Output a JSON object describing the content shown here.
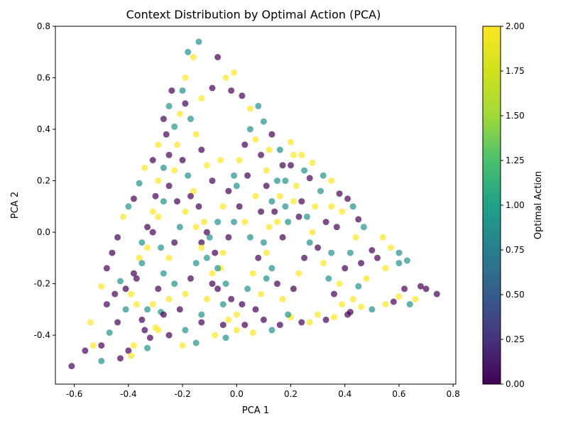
{
  "chart_data": {
    "type": "scatter",
    "title": "Context Distribution by Optimal Action (PCA)",
    "xlabel": "PCA 1",
    "ylabel": "PCA 2",
    "xlim": [
      -0.67,
      0.81
    ],
    "ylim": [
      -0.59,
      0.8
    ],
    "x_ticks": [
      -0.6,
      -0.4,
      -0.2,
      0.0,
      0.2,
      0.4,
      0.6,
      0.8
    ],
    "y_ticks": [
      -0.4,
      -0.2,
      0.0,
      0.2,
      0.4,
      0.6,
      0.8
    ],
    "grid": false,
    "colormap": "viridis",
    "point_alpha": 0.7,
    "colorbar": {
      "label": "Optimal Action",
      "range": [
        0.0,
        2.0
      ],
      "ticks": [
        0.0,
        0.25,
        0.5,
        0.75,
        1.0,
        1.25,
        1.5,
        1.75,
        2.0
      ]
    },
    "colors": {
      "action_0": "#440154",
      "action_1": "#21918c",
      "action_2": "#fde725"
    },
    "points": [
      {
        "x": -0.61,
        "y": -0.52,
        "c": 0
      },
      {
        "x": -0.56,
        "y": -0.46,
        "c": 0
      },
      {
        "x": -0.5,
        "y": -0.5,
        "c": 1
      },
      {
        "x": -0.5,
        "y": -0.44,
        "c": 0
      },
      {
        "x": -0.54,
        "y": -0.35,
        "c": 2
      },
      {
        "x": -0.53,
        "y": -0.44,
        "c": 2
      },
      {
        "x": -0.47,
        "y": -0.39,
        "c": 1
      },
      {
        "x": -0.44,
        "y": -0.35,
        "c": 0
      },
      {
        "x": -0.43,
        "y": -0.49,
        "c": 0
      },
      {
        "x": -0.4,
        "y": -0.46,
        "c": 0
      },
      {
        "x": -0.39,
        "y": -0.48,
        "c": 2
      },
      {
        "x": -0.38,
        "y": -0.44,
        "c": 2
      },
      {
        "x": -0.33,
        "y": -0.45,
        "c": 1
      },
      {
        "x": -0.32,
        "y": -0.41,
        "c": 0
      },
      {
        "x": -0.34,
        "y": -0.38,
        "c": 0
      },
      {
        "x": -0.3,
        "y": -0.37,
        "c": 2
      },
      {
        "x": -0.28,
        "y": -0.31,
        "c": 1
      },
      {
        "x": -0.25,
        "y": -0.4,
        "c": 0
      },
      {
        "x": -0.2,
        "y": -0.44,
        "c": 2
      },
      {
        "x": -0.19,
        "y": -0.38,
        "c": 1
      },
      {
        "x": -0.15,
        "y": -0.43,
        "c": 1
      },
      {
        "x": -0.13,
        "y": -0.35,
        "c": 0
      },
      {
        "x": -0.08,
        "y": -0.4,
        "c": 2
      },
      {
        "x": -0.05,
        "y": -0.36,
        "c": 0
      },
      {
        "x": -0.04,
        "y": -0.41,
        "c": 1
      },
      {
        "x": 0.0,
        "y": -0.38,
        "c": 2
      },
      {
        "x": 0.03,
        "y": -0.36,
        "c": 0
      },
      {
        "x": 0.06,
        "y": -0.39,
        "c": 2
      },
      {
        "x": 0.1,
        "y": -0.34,
        "c": 0
      },
      {
        "x": 0.13,
        "y": -0.38,
        "c": 1
      },
      {
        "x": 0.16,
        "y": -0.36,
        "c": 0
      },
      {
        "x": 0.2,
        "y": -0.33,
        "c": 2
      },
      {
        "x": 0.24,
        "y": -0.35,
        "c": 0
      },
      {
        "x": 0.27,
        "y": -0.35,
        "c": 2
      },
      {
        "x": 0.3,
        "y": -0.32,
        "c": 2
      },
      {
        "x": 0.33,
        "y": -0.34,
        "c": 0
      },
      {
        "x": 0.36,
        "y": -0.33,
        "c": 2
      },
      {
        "x": 0.42,
        "y": -0.31,
        "c": 0
      },
      {
        "x": 0.46,
        "y": -0.29,
        "c": 2
      },
      {
        "x": 0.5,
        "y": -0.3,
        "c": 1
      },
      {
        "x": 0.55,
        "y": -0.28,
        "c": 2
      },
      {
        "x": 0.58,
        "y": -0.27,
        "c": 0
      },
      {
        "x": 0.6,
        "y": -0.25,
        "c": 2
      },
      {
        "x": 0.62,
        "y": -0.22,
        "c": 0
      },
      {
        "x": 0.64,
        "y": -0.28,
        "c": 1
      },
      {
        "x": 0.66,
        "y": -0.26,
        "c": 2
      },
      {
        "x": 0.68,
        "y": -0.21,
        "c": 0
      },
      {
        "x": 0.7,
        "y": -0.22,
        "c": 0
      },
      {
        "x": 0.74,
        "y": -0.24,
        "c": 0
      },
      {
        "x": 0.63,
        "y": -0.11,
        "c": 1
      },
      {
        "x": 0.6,
        "y": -0.12,
        "c": 1
      },
      {
        "x": 0.6,
        "y": -0.08,
        "c": 1
      },
      {
        "x": 0.57,
        "y": -0.06,
        "c": 2
      },
      {
        "x": 0.54,
        "y": -0.02,
        "c": 2
      },
      {
        "x": 0.5,
        "y": -0.07,
        "c": 0
      },
      {
        "x": 0.47,
        "y": 0.02,
        "c": 1
      },
      {
        "x": 0.45,
        "y": 0.05,
        "c": 0
      },
      {
        "x": 0.43,
        "y": 0.1,
        "c": 1
      },
      {
        "x": 0.41,
        "y": 0.13,
        "c": 0
      },
      {
        "x": 0.38,
        "y": 0.15,
        "c": 0
      },
      {
        "x": 0.35,
        "y": 0.2,
        "c": 2
      },
      {
        "x": 0.32,
        "y": 0.22,
        "c": 1
      },
      {
        "x": 0.28,
        "y": 0.27,
        "c": 2
      },
      {
        "x": 0.24,
        "y": 0.3,
        "c": 2
      },
      {
        "x": 0.2,
        "y": 0.35,
        "c": 2
      },
      {
        "x": 0.16,
        "y": 0.32,
        "c": 1
      },
      {
        "x": 0.13,
        "y": 0.38,
        "c": 0
      },
      {
        "x": 0.1,
        "y": 0.43,
        "c": 1
      },
      {
        "x": 0.08,
        "y": 0.49,
        "c": 1
      },
      {
        "x": 0.05,
        "y": 0.48,
        "c": 2
      },
      {
        "x": 0.02,
        "y": 0.53,
        "c": 0
      },
      {
        "x": -0.02,
        "y": 0.55,
        "c": 0
      },
      {
        "x": -0.01,
        "y": 0.62,
        "c": 2
      },
      {
        "x": -0.04,
        "y": 0.6,
        "c": 2
      },
      {
        "x": -0.07,
        "y": 0.68,
        "c": 0
      },
      {
        "x": -0.09,
        "y": 0.56,
        "c": 0
      },
      {
        "x": -0.13,
        "y": 0.52,
        "c": 2
      },
      {
        "x": -0.14,
        "y": 0.74,
        "c": 1
      },
      {
        "x": -0.18,
        "y": 0.7,
        "c": 1
      },
      {
        "x": -0.16,
        "y": 0.68,
        "c": 2
      },
      {
        "x": -0.19,
        "y": 0.6,
        "c": 2
      },
      {
        "x": -0.2,
        "y": 0.55,
        "c": 1
      },
      {
        "x": -0.24,
        "y": 0.55,
        "c": 0
      },
      {
        "x": -0.25,
        "y": 0.49,
        "c": 1
      },
      {
        "x": -0.27,
        "y": 0.44,
        "c": 0
      },
      {
        "x": -0.26,
        "y": 0.38,
        "c": 0
      },
      {
        "x": -0.23,
        "y": 0.41,
        "c": 1
      },
      {
        "x": -0.29,
        "y": 0.34,
        "c": 2
      },
      {
        "x": -0.31,
        "y": 0.28,
        "c": 0
      },
      {
        "x": -0.34,
        "y": 0.25,
        "c": 2
      },
      {
        "x": -0.36,
        "y": 0.19,
        "c": 1
      },
      {
        "x": -0.38,
        "y": 0.13,
        "c": 0
      },
      {
        "x": -0.4,
        "y": 0.1,
        "c": 1
      },
      {
        "x": -0.42,
        "y": 0.06,
        "c": 2
      },
      {
        "x": -0.44,
        "y": -0.02,
        "c": 0
      },
      {
        "x": -0.46,
        "y": -0.08,
        "c": 0
      },
      {
        "x": -0.48,
        "y": -0.14,
        "c": 0
      },
      {
        "x": -0.5,
        "y": -0.21,
        "c": 2
      },
      {
        "x": -0.48,
        "y": -0.28,
        "c": 0
      },
      {
        "x": -0.45,
        "y": -0.24,
        "c": 0
      },
      {
        "x": -0.43,
        "y": -0.19,
        "c": 1
      },
      {
        "x": -0.41,
        "y": -0.22,
        "c": 0
      },
      {
        "x": -0.38,
        "y": -0.16,
        "c": 0
      },
      {
        "x": -0.36,
        "y": -0.1,
        "c": 2
      },
      {
        "x": -0.35,
        "y": -0.04,
        "c": 1
      },
      {
        "x": -0.33,
        "y": 0.02,
        "c": 0
      },
      {
        "x": -0.31,
        "y": 0.08,
        "c": 2
      },
      {
        "x": -0.3,
        "y": 0.14,
        "c": 0
      },
      {
        "x": -0.29,
        "y": 0.2,
        "c": 2
      },
      {
        "x": -0.27,
        "y": 0.25,
        "c": 1
      },
      {
        "x": -0.25,
        "y": 0.3,
        "c": 0
      },
      {
        "x": -0.22,
        "y": 0.34,
        "c": 2
      },
      {
        "x": -0.2,
        "y": 0.28,
        "c": 0
      },
      {
        "x": -0.18,
        "y": 0.22,
        "c": 1
      },
      {
        "x": -0.16,
        "y": 0.16,
        "c": 2
      },
      {
        "x": -0.14,
        "y": 0.1,
        "c": 0
      },
      {
        "x": -0.12,
        "y": 0.04,
        "c": 2
      },
      {
        "x": -0.1,
        "y": -0.02,
        "c": 1
      },
      {
        "x": -0.08,
        "y": -0.08,
        "c": 0
      },
      {
        "x": -0.06,
        "y": -0.14,
        "c": 2
      },
      {
        "x": -0.04,
        "y": -0.2,
        "c": 1
      },
      {
        "x": -0.02,
        "y": -0.26,
        "c": 0
      },
      {
        "x": 0.0,
        "y": -0.32,
        "c": 2
      },
      {
        "x": 0.02,
        "y": -0.28,
        "c": 0
      },
      {
        "x": 0.04,
        "y": -0.22,
        "c": 1
      },
      {
        "x": 0.06,
        "y": -0.16,
        "c": 2
      },
      {
        "x": 0.08,
        "y": -0.1,
        "c": 0
      },
      {
        "x": 0.1,
        "y": -0.04,
        "c": 1
      },
      {
        "x": 0.12,
        "y": 0.02,
        "c": 2
      },
      {
        "x": 0.14,
        "y": 0.08,
        "c": 0
      },
      {
        "x": 0.16,
        "y": 0.14,
        "c": 2
      },
      {
        "x": 0.18,
        "y": 0.2,
        "c": 1
      },
      {
        "x": 0.2,
        "y": 0.26,
        "c": 0
      },
      {
        "x": 0.22,
        "y": 0.18,
        "c": 2
      },
      {
        "x": 0.24,
        "y": 0.12,
        "c": 0
      },
      {
        "x": 0.26,
        "y": 0.06,
        "c": 1
      },
      {
        "x": 0.28,
        "y": 0.0,
        "c": 2
      },
      {
        "x": 0.3,
        "y": -0.06,
        "c": 0
      },
      {
        "x": 0.32,
        "y": -0.12,
        "c": 2
      },
      {
        "x": 0.34,
        "y": -0.18,
        "c": 1
      },
      {
        "x": 0.36,
        "y": -0.24,
        "c": 0
      },
      {
        "x": 0.38,
        "y": -0.2,
        "c": 2
      },
      {
        "x": 0.4,
        "y": -0.14,
        "c": 0
      },
      {
        "x": 0.42,
        "y": -0.08,
        "c": 1
      },
      {
        "x": 0.44,
        "y": -0.02,
        "c": 2
      },
      {
        "x": 0.46,
        "y": -0.12,
        "c": 0
      },
      {
        "x": 0.48,
        "y": -0.18,
        "c": 2
      },
      {
        "x": 0.52,
        "y": -0.1,
        "c": 0
      },
      {
        "x": 0.55,
        "y": -0.14,
        "c": 2
      },
      {
        "x": 0.35,
        "y": 0.1,
        "c": 2
      },
      {
        "x": 0.33,
        "y": 0.04,
        "c": 0
      },
      {
        "x": 0.31,
        "y": 0.16,
        "c": 1
      },
      {
        "x": 0.27,
        "y": 0.21,
        "c": 0
      },
      {
        "x": 0.25,
        "y": 0.24,
        "c": 1
      },
      {
        "x": 0.21,
        "y": 0.3,
        "c": 2
      },
      {
        "x": 0.17,
        "y": 0.26,
        "c": 0
      },
      {
        "x": 0.15,
        "y": 0.2,
        "c": 1
      },
      {
        "x": 0.11,
        "y": 0.24,
        "c": 2
      },
      {
        "x": 0.09,
        "y": 0.3,
        "c": 0
      },
      {
        "x": 0.07,
        "y": 0.36,
        "c": 2
      },
      {
        "x": 0.05,
        "y": 0.4,
        "c": 1
      },
      {
        "x": 0.03,
        "y": 0.34,
        "c": 0
      },
      {
        "x": 0.01,
        "y": 0.28,
        "c": 2
      },
      {
        "x": -0.01,
        "y": 0.22,
        "c": 1
      },
      {
        "x": -0.03,
        "y": 0.16,
        "c": 0
      },
      {
        "x": -0.05,
        "y": 0.1,
        "c": 2
      },
      {
        "x": -0.07,
        "y": 0.04,
        "c": 1
      },
      {
        "x": -0.09,
        "y": 0.2,
        "c": 0
      },
      {
        "x": -0.11,
        "y": 0.26,
        "c": 2
      },
      {
        "x": -0.13,
        "y": 0.32,
        "c": 0
      },
      {
        "x": -0.15,
        "y": 0.38,
        "c": 2
      },
      {
        "x": -0.17,
        "y": 0.44,
        "c": 1
      },
      {
        "x": -0.19,
        "y": 0.5,
        "c": 0
      },
      {
        "x": -0.21,
        "y": 0.46,
        "c": 2
      },
      {
        "x": -0.23,
        "y": 0.24,
        "c": 2
      },
      {
        "x": -0.25,
        "y": 0.18,
        "c": 0
      },
      {
        "x": -0.27,
        "y": 0.12,
        "c": 1
      },
      {
        "x": -0.29,
        "y": 0.06,
        "c": 2
      },
      {
        "x": -0.31,
        "y": 0.0,
        "c": 0
      },
      {
        "x": -0.33,
        "y": -0.06,
        "c": 2
      },
      {
        "x": -0.35,
        "y": -0.12,
        "c": 1
      },
      {
        "x": -0.37,
        "y": -0.18,
        "c": 0
      },
      {
        "x": -0.39,
        "y": -0.24,
        "c": 2
      },
      {
        "x": -0.41,
        "y": -0.3,
        "c": 1
      },
      {
        "x": -0.37,
        "y": -0.28,
        "c": 2
      },
      {
        "x": -0.35,
        "y": -0.34,
        "c": 0
      },
      {
        "x": -0.31,
        "y": -0.28,
        "c": 2
      },
      {
        "x": -0.29,
        "y": -0.22,
        "c": 0
      },
      {
        "x": -0.27,
        "y": -0.16,
        "c": 1
      },
      {
        "x": -0.25,
        "y": -0.1,
        "c": 2
      },
      {
        "x": -0.23,
        "y": -0.04,
        "c": 0
      },
      {
        "x": -0.21,
        "y": 0.02,
        "c": 1
      },
      {
        "x": -0.19,
        "y": 0.08,
        "c": 2
      },
      {
        "x": -0.17,
        "y": 0.14,
        "c": 0
      },
      {
        "x": -0.15,
        "y": 0.02,
        "c": 2
      },
      {
        "x": -0.13,
        "y": -0.04,
        "c": 0
      },
      {
        "x": -0.11,
        "y": -0.1,
        "c": 1
      },
      {
        "x": -0.09,
        "y": -0.16,
        "c": 2
      },
      {
        "x": -0.07,
        "y": -0.22,
        "c": 0
      },
      {
        "x": -0.05,
        "y": -0.28,
        "c": 1
      },
      {
        "x": -0.03,
        "y": -0.34,
        "c": 2
      },
      {
        "x": -0.21,
        "y": -0.3,
        "c": 0
      },
      {
        "x": -0.19,
        "y": -0.24,
        "c": 2
      },
      {
        "x": -0.17,
        "y": -0.18,
        "c": 0
      },
      {
        "x": -0.15,
        "y": -0.12,
        "c": 1
      },
      {
        "x": -0.13,
        "y": -0.06,
        "c": 2
      },
      {
        "x": -0.11,
        "y": 0.0,
        "c": 0
      },
      {
        "x": -0.23,
        "y": -0.2,
        "c": 1
      },
      {
        "x": -0.25,
        "y": -0.26,
        "c": 2
      },
      {
        "x": -0.27,
        "y": -0.32,
        "c": 0
      },
      {
        "x": -0.29,
        "y": -0.38,
        "c": 2
      },
      {
        "x": -0.33,
        "y": -0.3,
        "c": 1
      },
      {
        "x": 0.01,
        "y": 0.1,
        "c": 0
      },
      {
        "x": 0.03,
        "y": 0.04,
        "c": 2
      },
      {
        "x": 0.05,
        "y": -0.02,
        "c": 1
      },
      {
        "x": 0.07,
        "y": 0.14,
        "c": 2
      },
      {
        "x": 0.09,
        "y": 0.08,
        "c": 0
      },
      {
        "x": 0.11,
        "y": -0.08,
        "c": 2
      },
      {
        "x": 0.13,
        "y": -0.14,
        "c": 1
      },
      {
        "x": 0.15,
        "y": -0.2,
        "c": 0
      },
      {
        "x": 0.17,
        "y": -0.26,
        "c": 2
      },
      {
        "x": 0.19,
        "y": -0.32,
        "c": 1
      },
      {
        "x": 0.21,
        "y": -0.22,
        "c": 0
      },
      {
        "x": 0.23,
        "y": -0.16,
        "c": 2
      },
      {
        "x": 0.25,
        "y": -0.1,
        "c": 0
      },
      {
        "x": 0.27,
        "y": -0.04,
        "c": 1
      },
      {
        "x": 0.29,
        "y": 0.1,
        "c": 2
      },
      {
        "x": 0.19,
        "y": 0.04,
        "c": 1
      },
      {
        "x": 0.17,
        "y": -0.02,
        "c": 0
      },
      {
        "x": 0.15,
        "y": 0.04,
        "c": 2
      },
      {
        "x": 0.13,
        "y": 0.12,
        "c": 1
      },
      {
        "x": 0.11,
        "y": 0.18,
        "c": 0
      },
      {
        "x": 0.21,
        "y": 0.12,
        "c": 2
      },
      {
        "x": 0.23,
        "y": 0.06,
        "c": 0
      },
      {
        "x": -0.01,
        "y": 0.04,
        "c": 1
      },
      {
        "x": -0.03,
        "y": -0.02,
        "c": 0
      },
      {
        "x": -0.05,
        "y": -0.08,
        "c": 2
      },
      {
        "x": -0.07,
        "y": -0.14,
        "c": 1
      },
      {
        "x": -0.09,
        "y": -0.2,
        "c": 0
      },
      {
        "x": -0.11,
        "y": -0.26,
        "c": 2
      },
      {
        "x": -0.13,
        "y": -0.32,
        "c": 1
      },
      {
        "x": 0.07,
        "y": -0.3,
        "c": 0
      },
      {
        "x": 0.09,
        "y": -0.24,
        "c": 2
      },
      {
        "x": 0.11,
        "y": -0.18,
        "c": 1
      },
      {
        "x": 0.39,
        "y": -0.28,
        "c": 2
      },
      {
        "x": 0.41,
        "y": -0.32,
        "c": 0
      },
      {
        "x": 0.43,
        "y": -0.26,
        "c": 2
      },
      {
        "x": 0.45,
        "y": -0.21,
        "c": 1
      },
      {
        "x": 0.37,
        "y": 0.02,
        "c": 0
      },
      {
        "x": 0.39,
        "y": 0.08,
        "c": 2
      },
      {
        "x": 0.35,
        "y": -0.08,
        "c": 1
      },
      {
        "x": -0.28,
        "y": -0.06,
        "c": 1
      },
      {
        "x": -0.22,
        "y": 0.12,
        "c": 0
      },
      {
        "x": 0.0,
        "y": 0.18,
        "c": 1
      },
      {
        "x": 0.04,
        "y": 0.22,
        "c": 0
      },
      {
        "x": -0.06,
        "y": 0.28,
        "c": 2
      },
      {
        "x": 0.12,
        "y": 0.32,
        "c": 2
      },
      {
        "x": 0.18,
        "y": 0.1,
        "c": 1
      }
    ]
  }
}
